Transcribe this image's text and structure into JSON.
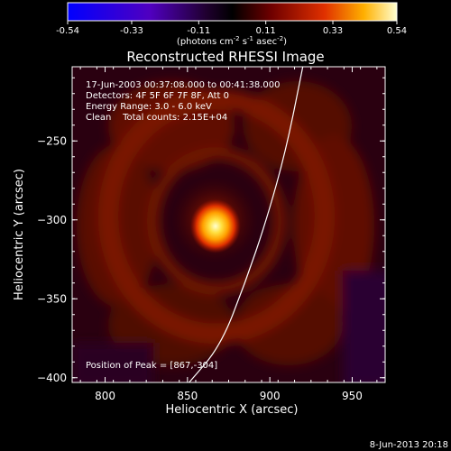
{
  "chart_data": {
    "type": "heatmap",
    "title": "Reconstructed RHESSI Image",
    "xlabel": "Heliocentric X (arcsec)",
    "ylabel": "Heliocentric Y (arcsec)",
    "xlim": [
      780,
      970
    ],
    "ylim": [
      -403,
      -203
    ],
    "x_ticks": [
      800,
      850,
      900,
      950
    ],
    "y_ticks": [
      -250,
      -300,
      -350,
      -400
    ],
    "colorbar": {
      "min": -0.54,
      "max": 0.54,
      "ticks": [
        -0.54,
        -0.33,
        -0.11,
        0.11,
        0.33,
        0.54
      ],
      "tick_labels": [
        "-0.54",
        "-0.33",
        "-0.11",
        "0.11",
        "0.33",
        "0.54"
      ],
      "unit_label_parts": [
        "(photons cm",
        "-2",
        " s",
        "-1",
        " asec",
        "-2",
        ")"
      ]
    },
    "annotations": [
      "17-Jun-2003 00:37:08.000 to 00:41:38.000",
      "Detectors: 4F 5F 6F 7F 8F, Att 0",
      "Energy Range: 3.0 - 6.0 keV",
      "Clean    Total counts: 2.15E+04"
    ],
    "peak_label": "Position of Peak = [867,-304]",
    "peak": {
      "x": 867,
      "y": -304,
      "value": 0.54
    },
    "limb_curve": [
      [
        851,
        -403
      ],
      [
        870,
        -380
      ],
      [
        885,
        -340
      ],
      [
        898,
        -300
      ],
      [
        910,
        -255
      ],
      [
        920,
        -203
      ]
    ],
    "footer": "8-Jun-2013 20:18"
  }
}
